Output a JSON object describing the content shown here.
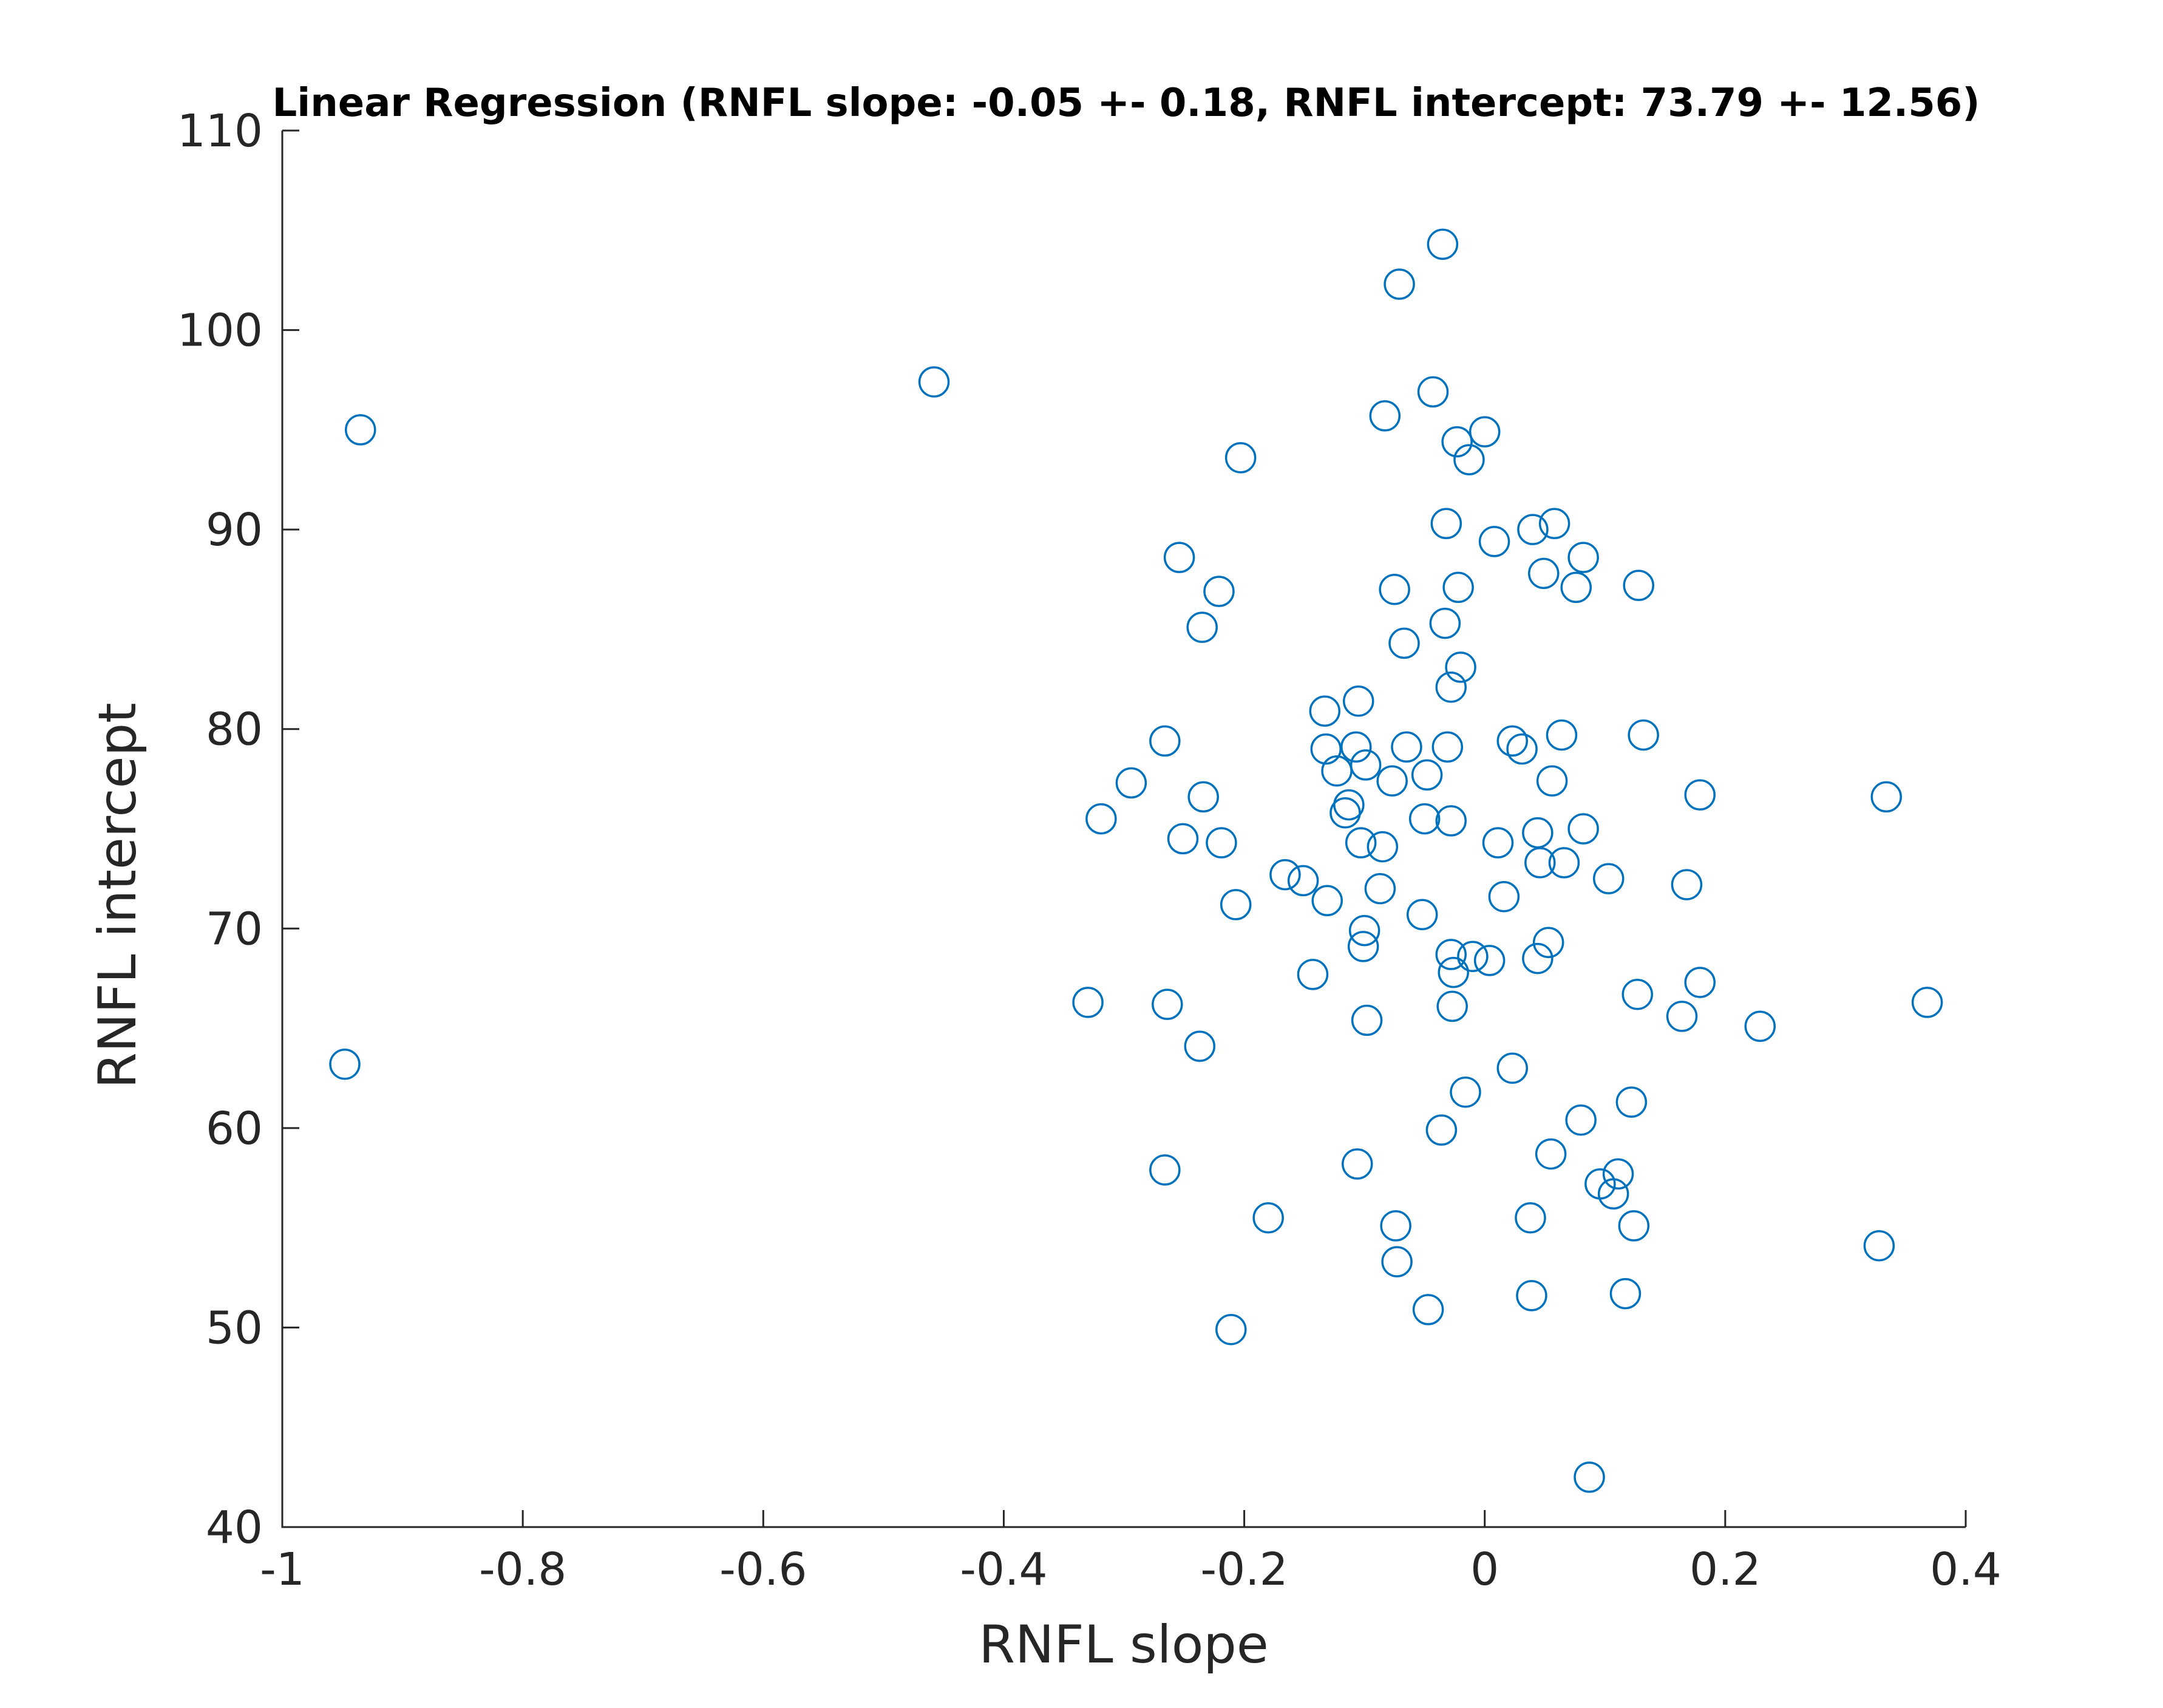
{
  "chart_data": {
    "type": "scatter",
    "title": "Linear Regression (RNFL slope: -0.05 +- 0.18, RNFL intercept: 73.79 +- 12.56)",
    "xlabel": "RNFL slope",
    "ylabel": "RNFL intercept",
    "xlim": [
      -1,
      0.4
    ],
    "ylim": [
      40,
      110
    ],
    "xticks": [
      -1,
      -0.8,
      -0.6,
      -0.4,
      -0.2,
      0,
      0.2,
      0.4
    ],
    "xtick_labels": [
      "-1",
      "-0.8",
      "-0.6",
      "-0.4",
      "-0.2",
      "0",
      "0.2",
      "0.4"
    ],
    "yticks": [
      40,
      50,
      60,
      70,
      80,
      90,
      100,
      110
    ],
    "ytick_labels": [
      "40",
      "50",
      "60",
      "70",
      "80",
      "90",
      "100",
      "110"
    ],
    "grid": false,
    "marker": "circle-open",
    "color": "#0072BD",
    "points": [
      [
        -0.935,
        95.0
      ],
      [
        -0.948,
        63.2
      ],
      [
        -0.458,
        97.4
      ],
      [
        -0.33,
        66.3
      ],
      [
        -0.319,
        75.5
      ],
      [
        -0.294,
        77.3
      ],
      [
        -0.266,
        79.4
      ],
      [
        -0.264,
        66.2
      ],
      [
        -0.266,
        57.9
      ],
      [
        -0.254,
        88.6
      ],
      [
        -0.251,
        74.5
      ],
      [
        -0.235,
        85.1
      ],
      [
        -0.234,
        76.6
      ],
      [
        -0.237,
        64.1
      ],
      [
        -0.221,
        86.9
      ],
      [
        -0.219,
        74.3
      ],
      [
        -0.207,
        71.2
      ],
      [
        -0.203,
        93.6
      ],
      [
        -0.211,
        49.9
      ],
      [
        -0.18,
        55.5
      ],
      [
        -0.166,
        72.7
      ],
      [
        -0.151,
        72.4
      ],
      [
        -0.143,
        67.7
      ],
      [
        -0.133,
        80.9
      ],
      [
        -0.132,
        79.0
      ],
      [
        -0.131,
        71.4
      ],
      [
        -0.123,
        77.9
      ],
      [
        -0.116,
        75.8
      ],
      [
        -0.113,
        76.2
      ],
      [
        -0.107,
        79.1
      ],
      [
        -0.105,
        81.4
      ],
      [
        -0.103,
        74.3
      ],
      [
        -0.1,
        69.9
      ],
      [
        -0.101,
        69.1
      ],
      [
        -0.099,
        78.2
      ],
      [
        -0.098,
        65.4
      ],
      [
        -0.106,
        58.2
      ],
      [
        -0.087,
        72.0
      ],
      [
        -0.085,
        74.1
      ],
      [
        -0.083,
        95.7
      ],
      [
        -0.077,
        77.4
      ],
      [
        -0.075,
        87.0
      ],
      [
        -0.074,
        55.1
      ],
      [
        -0.073,
        53.3
      ],
      [
        -0.071,
        102.3
      ],
      [
        -0.067,
        84.3
      ],
      [
        -0.065,
        79.1
      ],
      [
        -0.052,
        70.7
      ],
      [
        -0.05,
        75.5
      ],
      [
        -0.048,
        77.7
      ],
      [
        -0.047,
        50.9
      ],
      [
        -0.043,
        96.9
      ],
      [
        -0.035,
        104.3
      ],
      [
        -0.036,
        59.9
      ],
      [
        -0.033,
        85.3
      ],
      [
        -0.032,
        90.3
      ],
      [
        -0.031,
        79.1
      ],
      [
        -0.028,
        82.1
      ],
      [
        -0.028,
        75.4
      ],
      [
        -0.028,
        68.7
      ],
      [
        -0.027,
        66.1
      ],
      [
        -0.026,
        67.8
      ],
      [
        -0.023,
        94.4
      ],
      [
        -0.022,
        87.1
      ],
      [
        -0.02,
        83.1
      ],
      [
        -0.016,
        61.8
      ],
      [
        -0.013,
        93.5
      ],
      [
        -0.01,
        68.6
      ],
      [
        0.0,
        94.9
      ],
      [
        0.004,
        68.4
      ],
      [
        0.008,
        89.4
      ],
      [
        0.011,
        74.3
      ],
      [
        0.016,
        71.6
      ],
      [
        0.023,
        79.4
      ],
      [
        0.023,
        63.0
      ],
      [
        0.031,
        79.0
      ],
      [
        0.038,
        55.5
      ],
      [
        0.039,
        51.6
      ],
      [
        0.04,
        90.0
      ],
      [
        0.044,
        74.8
      ],
      [
        0.044,
        68.5
      ],
      [
        0.046,
        73.3
      ],
      [
        0.049,
        87.8
      ],
      [
        0.053,
        69.3
      ],
      [
        0.055,
        58.7
      ],
      [
        0.056,
        77.4
      ],
      [
        0.058,
        90.3
      ],
      [
        0.064,
        79.7
      ],
      [
        0.066,
        73.3
      ],
      [
        0.076,
        87.1
      ],
      [
        0.08,
        60.4
      ],
      [
        0.082,
        75.0
      ],
      [
        0.082,
        88.6
      ],
      [
        0.087,
        42.5
      ],
      [
        0.096,
        57.2
      ],
      [
        0.103,
        72.5
      ],
      [
        0.107,
        56.7
      ],
      [
        0.111,
        57.7
      ],
      [
        0.117,
        51.7
      ],
      [
        0.122,
        61.3
      ],
      [
        0.124,
        55.1
      ],
      [
        0.127,
        66.7
      ],
      [
        0.128,
        87.2
      ],
      [
        0.132,
        79.7
      ],
      [
        0.164,
        65.6
      ],
      [
        0.168,
        72.2
      ],
      [
        0.179,
        67.3
      ],
      [
        0.179,
        76.7
      ],
      [
        0.229,
        65.1
      ],
      [
        0.328,
        54.1
      ],
      [
        0.334,
        76.6
      ],
      [
        0.368,
        66.3
      ]
    ]
  }
}
